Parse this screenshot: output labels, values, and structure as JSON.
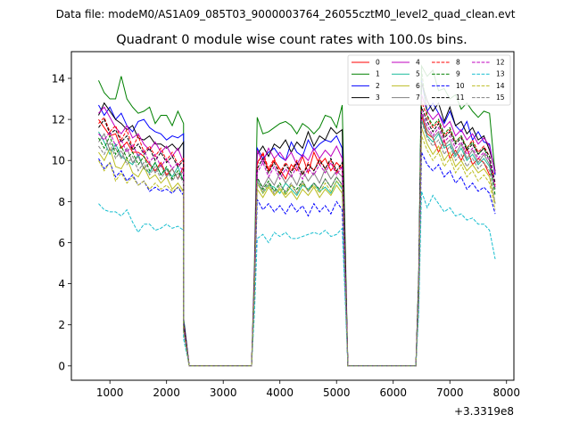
{
  "suptitle": "Data file: modeM0/AS1A09_085T03_9000003764_26055cztM0_level2_quad_clean.evt",
  "chart_data": {
    "type": "line",
    "title": "Quadrant 0 module wise count rates with 100.0s bins.",
    "xlabel": "",
    "ylabel": "",
    "x_offset_label": "+3.3319e8",
    "xlim": [
      320,
      8130
    ],
    "ylim": [
      -0.7,
      15.3
    ],
    "xticks": [
      1000,
      2000,
      3000,
      4000,
      5000,
      6000,
      7000,
      8000
    ],
    "xtick_labels": [
      "1000",
      "2000",
      "3000",
      "4000",
      "5000",
      "6000",
      "7000",
      "8000"
    ],
    "yticks": [
      0,
      2,
      4,
      6,
      8,
      10,
      12,
      14
    ],
    "ytick_labels": [
      "0",
      "2",
      "4",
      "6",
      "8",
      "10",
      "12",
      "14"
    ],
    "grid": false,
    "legend_placement": "top-right",
    "legend_columns": 4,
    "gap_x": [
      2400,
      2500,
      2600,
      2700,
      2800,
      2900,
      3000,
      3100,
      3200,
      3300,
      3400,
      3500,
      5200,
      5300,
      5400,
      5500,
      5600,
      5700,
      5800,
      5900,
      6000,
      6100,
      6200,
      6300
    ],
    "segments": [
      {
        "x_start": 800,
        "x_end": 2300,
        "descent": [
          {
            "x": 2300,
            "factor": 0.2
          }
        ],
        "gap_start": 2400
      },
      {
        "x_start": 3600,
        "x_end": 5100,
        "ascent": [
          {
            "x": 3550,
            "factor": 0.4
          }
        ],
        "descent": [
          {
            "x": 5150,
            "factor": 0.5
          }
        ],
        "gap_start": 5200
      },
      {
        "x_start": 6500,
        "x_end": 7800,
        "ascent": [
          {
            "x": 6400,
            "factor": 0.0
          },
          {
            "x": 6450,
            "factor": 0.3
          }
        ]
      }
    ],
    "series": [
      {
        "name": "0",
        "color": "#ff0000",
        "dash": false,
        "level": [
          12.0,
          11.6,
          11.2,
          11.3,
          10.6,
          10.9,
          10.4,
          10.4,
          10.2,
          9.8,
          9.5,
          9.9,
          9.3,
          9.6,
          9.1,
          9.7,
          9.9,
          10.3,
          9.5,
          10.0,
          9.6,
          9.1,
          9.8,
          9.5,
          10.2,
          9.4,
          10.4,
          9.8,
          10.1,
          9.5,
          9.9,
          9.6,
          12.2,
          11.3,
          11.1,
          10.4,
          11.0,
          10.1,
          10.5,
          10.0,
          10.6,
          9.8,
          10.1,
          9.9,
          9.3,
          9.4
        ]
      },
      {
        "name": "1",
        "color": "#008000",
        "dash": false,
        "level": [
          13.9,
          13.3,
          13.0,
          13.0,
          14.1,
          13.0,
          12.6,
          12.3,
          12.4,
          12.6,
          11.8,
          12.2,
          12.2,
          11.7,
          12.4,
          11.8,
          12.1,
          11.3,
          11.4,
          11.6,
          11.8,
          11.9,
          11.7,
          11.3,
          11.8,
          11.6,
          11.3,
          11.6,
          12.2,
          12.1,
          11.6,
          12.7,
          14.6,
          14.1,
          14.4,
          13.4,
          13.5,
          13.0,
          13.2,
          12.5,
          12.8,
          12.4,
          12.1,
          12.4,
          12.3,
          9.3
        ]
      },
      {
        "name": "2",
        "color": "#0000ff",
        "dash": false,
        "level": [
          12.7,
          12.2,
          12.6,
          12.0,
          12.3,
          11.7,
          11.4,
          11.9,
          12.0,
          11.6,
          11.4,
          11.3,
          11.0,
          11.2,
          11.1,
          11.3,
          10.6,
          10.1,
          10.4,
          10.6,
          10.2,
          10.0,
          10.9,
          10.4,
          10.2,
          11.0,
          10.5,
          10.8,
          11.0,
          10.9,
          11.2,
          10.6,
          13.9,
          12.4,
          12.8,
          12.3,
          11.8,
          12.4,
          11.7,
          11.4,
          11.9,
          11.0,
          11.4,
          10.9,
          10.8,
          9.3
        ]
      },
      {
        "name": "3",
        "color": "#000000",
        "dash": false,
        "level": [
          12.2,
          12.8,
          12.4,
          12.0,
          11.8,
          11.5,
          11.7,
          11.1,
          11.0,
          11.2,
          10.8,
          10.8,
          10.6,
          10.8,
          10.5,
          10.9,
          10.3,
          10.7,
          10.2,
          10.8,
          10.6,
          11.0,
          10.4,
          10.9,
          10.6,
          11.4,
          10.7,
          11.2,
          11.0,
          11.6,
          11.3,
          11.5,
          13.8,
          12.9,
          12.4,
          12.8,
          11.9,
          12.6,
          11.7,
          11.9,
          11.3,
          11.6,
          11.0,
          11.2,
          10.5,
          9.5
        ]
      },
      {
        "name": "4",
        "color": "#bf00bf",
        "dash": false,
        "level": [
          12.3,
          12.6,
          12.1,
          11.6,
          11.3,
          11.7,
          11.1,
          11.3,
          10.8,
          10.5,
          10.9,
          10.4,
          10.7,
          10.2,
          10.6,
          9.9,
          10.5,
          9.9,
          10.6,
          10.1,
          10.4,
          10.0,
          10.4,
          9.8,
          10.3,
          10.0,
          10.6,
          10.1,
          10.5,
          10.2,
          10.7,
          10.1,
          13.2,
          12.4,
          12.0,
          12.3,
          11.6,
          11.9,
          11.2,
          11.5,
          11.0,
          11.3,
          10.8,
          11.1,
          10.7,
          9.4
        ]
      },
      {
        "name": "5",
        "color": "#1abc9c",
        "dash": false,
        "level": [
          11.4,
          10.9,
          10.3,
          10.8,
          10.2,
          10.0,
          9.8,
          10.3,
          9.6,
          9.4,
          9.9,
          9.3,
          9.6,
          9.2,
          9.7,
          9.0,
          9.0,
          8.4,
          8.8,
          8.7,
          8.4,
          8.9,
          8.6,
          8.3,
          8.8,
          8.6,
          8.9,
          8.5,
          8.7,
          8.4,
          9.0,
          8.6,
          12.0,
          11.2,
          10.9,
          11.3,
          10.6,
          10.8,
          10.2,
          10.6,
          10.0,
          10.3,
          9.8,
          10.1,
          9.7,
          8.6
        ]
      },
      {
        "name": "6",
        "color": "#bcbd22",
        "dash": false,
        "level": [
          10.4,
          10.0,
          10.6,
          9.7,
          9.6,
          10.1,
          9.4,
          9.2,
          9.7,
          9.1,
          9.3,
          8.9,
          9.2,
          8.6,
          8.9,
          8.5,
          8.6,
          8.2,
          8.7,
          8.3,
          8.6,
          8.2,
          8.5,
          8.1,
          8.6,
          8.3,
          8.7,
          8.2,
          8.6,
          8.3,
          8.8,
          8.4,
          11.6,
          10.8,
          10.3,
          10.7,
          10.0,
          10.4,
          9.7,
          10.0,
          9.5,
          9.8,
          9.4,
          9.6,
          9.2,
          7.9
        ]
      },
      {
        "name": "7",
        "color": "#808080",
        "dash": false,
        "level": [
          10.9,
          11.3,
          10.5,
          10.6,
          10.1,
          10.6,
          9.9,
          10.2,
          9.6,
          9.9,
          9.4,
          9.8,
          9.2,
          9.6,
          9.1,
          9.5,
          9.1,
          8.7,
          9.2,
          8.8,
          9.4,
          8.9,
          9.3,
          8.8,
          9.5,
          9.0,
          9.4,
          8.9,
          9.6,
          9.1,
          9.5,
          9.2,
          12.3,
          11.5,
          11.1,
          11.4,
          10.7,
          11.0,
          10.3,
          10.8,
          10.1,
          10.5,
          9.9,
          10.3,
          9.8,
          8.6
        ]
      },
      {
        "name": "8",
        "color": "#ff0000",
        "dash": true,
        "level": [
          11.8,
          12.1,
          11.4,
          11.7,
          11.0,
          11.5,
          10.6,
          11.2,
          10.4,
          10.7,
          10.2,
          10.6,
          10.0,
          10.4,
          9.8,
          10.1,
          9.8,
          10.4,
          9.6,
          10.1,
          9.4,
          9.9,
          9.5,
          10.0,
          9.3,
          9.9,
          9.5,
          10.1,
          9.6,
          10.0,
          9.4,
          9.8,
          12.9,
          12.1,
          11.6,
          11.9,
          11.2,
          11.5,
          10.9,
          11.2,
          10.6,
          11.0,
          10.4,
          10.7,
          10.2,
          8.8
        ]
      },
      {
        "name": "9",
        "color": "#008000",
        "dash": true,
        "level": [
          11.1,
          10.6,
          11.2,
          10.3,
          10.7,
          10.1,
          10.4,
          9.8,
          10.2,
          9.5,
          9.9,
          9.3,
          9.7,
          9.1,
          9.5,
          9.0,
          9.2,
          8.6,
          9.0,
          8.5,
          8.9,
          8.4,
          8.8,
          8.6,
          9.0,
          8.5,
          8.9,
          8.6,
          9.1,
          8.7,
          9.2,
          8.8,
          14.4,
          12.2,
          11.7,
          12.0,
          11.3,
          11.6,
          10.9,
          11.2,
          10.6,
          10.9,
          10.3,
          10.6,
          10.0,
          8.3
        ]
      },
      {
        "name": "10",
        "color": "#0000ff",
        "dash": true,
        "level": [
          10.1,
          9.6,
          9.9,
          9.2,
          9.5,
          9.0,
          9.3,
          8.8,
          9.0,
          8.5,
          8.7,
          8.5,
          8.6,
          8.4,
          8.7,
          8.3,
          8.1,
          7.6,
          7.9,
          7.5,
          7.8,
          7.4,
          7.9,
          7.5,
          7.8,
          7.3,
          7.9,
          7.5,
          7.8,
          7.4,
          8.0,
          7.6,
          10.4,
          9.8,
          9.5,
          9.8,
          9.2,
          9.5,
          8.9,
          9.2,
          8.6,
          8.9,
          8.5,
          8.7,
          8.4,
          7.4
        ]
      },
      {
        "name": "11",
        "color": "#000000",
        "dash": true,
        "level": [
          11.6,
          12.0,
          11.3,
          11.5,
          10.9,
          11.2,
          10.5,
          10.8,
          10.3,
          10.6,
          10.0,
          10.4,
          9.9,
          10.2,
          9.7,
          10.0,
          9.6,
          10.1,
          9.4,
          9.9,
          9.3,
          9.8,
          9.4,
          9.9,
          9.3,
          9.8,
          9.5,
          10.0,
          9.6,
          10.1,
          9.5,
          9.9,
          12.6,
          11.9,
          11.4,
          11.8,
          11.1,
          11.4,
          10.8,
          11.1,
          10.5,
          10.8,
          10.3,
          10.6,
          10.2,
          8.9
        ]
      },
      {
        "name": "12",
        "color": "#bf00bf",
        "dash": true,
        "level": [
          11.3,
          11.0,
          11.4,
          10.7,
          11.0,
          10.4,
          10.8,
          10.2,
          10.5,
          9.9,
          10.3,
          9.7,
          10.1,
          9.6,
          9.9,
          9.4,
          9.4,
          9.9,
          9.2,
          9.7,
          9.1,
          9.6,
          9.2,
          9.7,
          9.1,
          9.6,
          9.3,
          9.8,
          9.4,
          9.9,
          9.3,
          9.7,
          12.4,
          11.7,
          11.2,
          11.6,
          10.9,
          11.2,
          10.6,
          10.9,
          10.3,
          10.6,
          10.1,
          10.4,
          10.0,
          8.7
        ]
      },
      {
        "name": "13",
        "color": "#17becf",
        "dash": true,
        "level": [
          7.9,
          7.6,
          7.5,
          7.5,
          7.3,
          7.6,
          7.0,
          6.5,
          6.9,
          6.9,
          6.6,
          6.7,
          6.9,
          6.7,
          6.8,
          6.6,
          6.2,
          6.4,
          6.0,
          6.5,
          6.3,
          6.5,
          6.2,
          6.2,
          6.3,
          6.4,
          6.5,
          6.4,
          6.6,
          6.3,
          6.4,
          6.7,
          8.5,
          7.7,
          8.3,
          7.9,
          7.5,
          7.7,
          7.3,
          7.4,
          7.1,
          7.2,
          6.9,
          6.9,
          6.6,
          5.2
        ]
      },
      {
        "name": "14",
        "color": "#bcbd22",
        "dash": true,
        "level": [
          10.0,
          9.5,
          9.9,
          9.0,
          9.4,
          8.9,
          9.2,
          8.8,
          9.0,
          8.6,
          8.9,
          8.6,
          8.8,
          8.5,
          8.7,
          8.5,
          8.9,
          8.4,
          8.8,
          8.3,
          8.7,
          8.3,
          8.8,
          8.4,
          8.9,
          8.5,
          8.8,
          8.4,
          8.9,
          8.5,
          9.0,
          8.7,
          11.2,
          10.5,
          10.0,
          10.4,
          9.7,
          10.1,
          9.4,
          9.8,
          9.2,
          9.5,
          9.0,
          9.3,
          8.9,
          7.6
        ]
      },
      {
        "name": "15",
        "color": "#808080",
        "dash": true,
        "level": [
          10.7,
          10.3,
          10.9,
          10.1,
          10.5,
          9.8,
          10.2,
          9.5,
          9.9,
          9.3,
          9.7,
          9.1,
          9.6,
          9.0,
          9.4,
          8.9,
          9.0,
          8.5,
          8.9,
          8.4,
          8.8,
          8.5,
          8.9,
          8.4,
          9.0,
          8.5,
          8.9,
          8.6,
          9.1,
          8.7,
          9.2,
          8.8,
          11.9,
          11.1,
          10.7,
          11.0,
          10.3,
          10.7,
          10.0,
          10.3,
          9.7,
          10.1,
          9.6,
          9.9,
          9.5,
          7.9
        ]
      }
    ]
  }
}
